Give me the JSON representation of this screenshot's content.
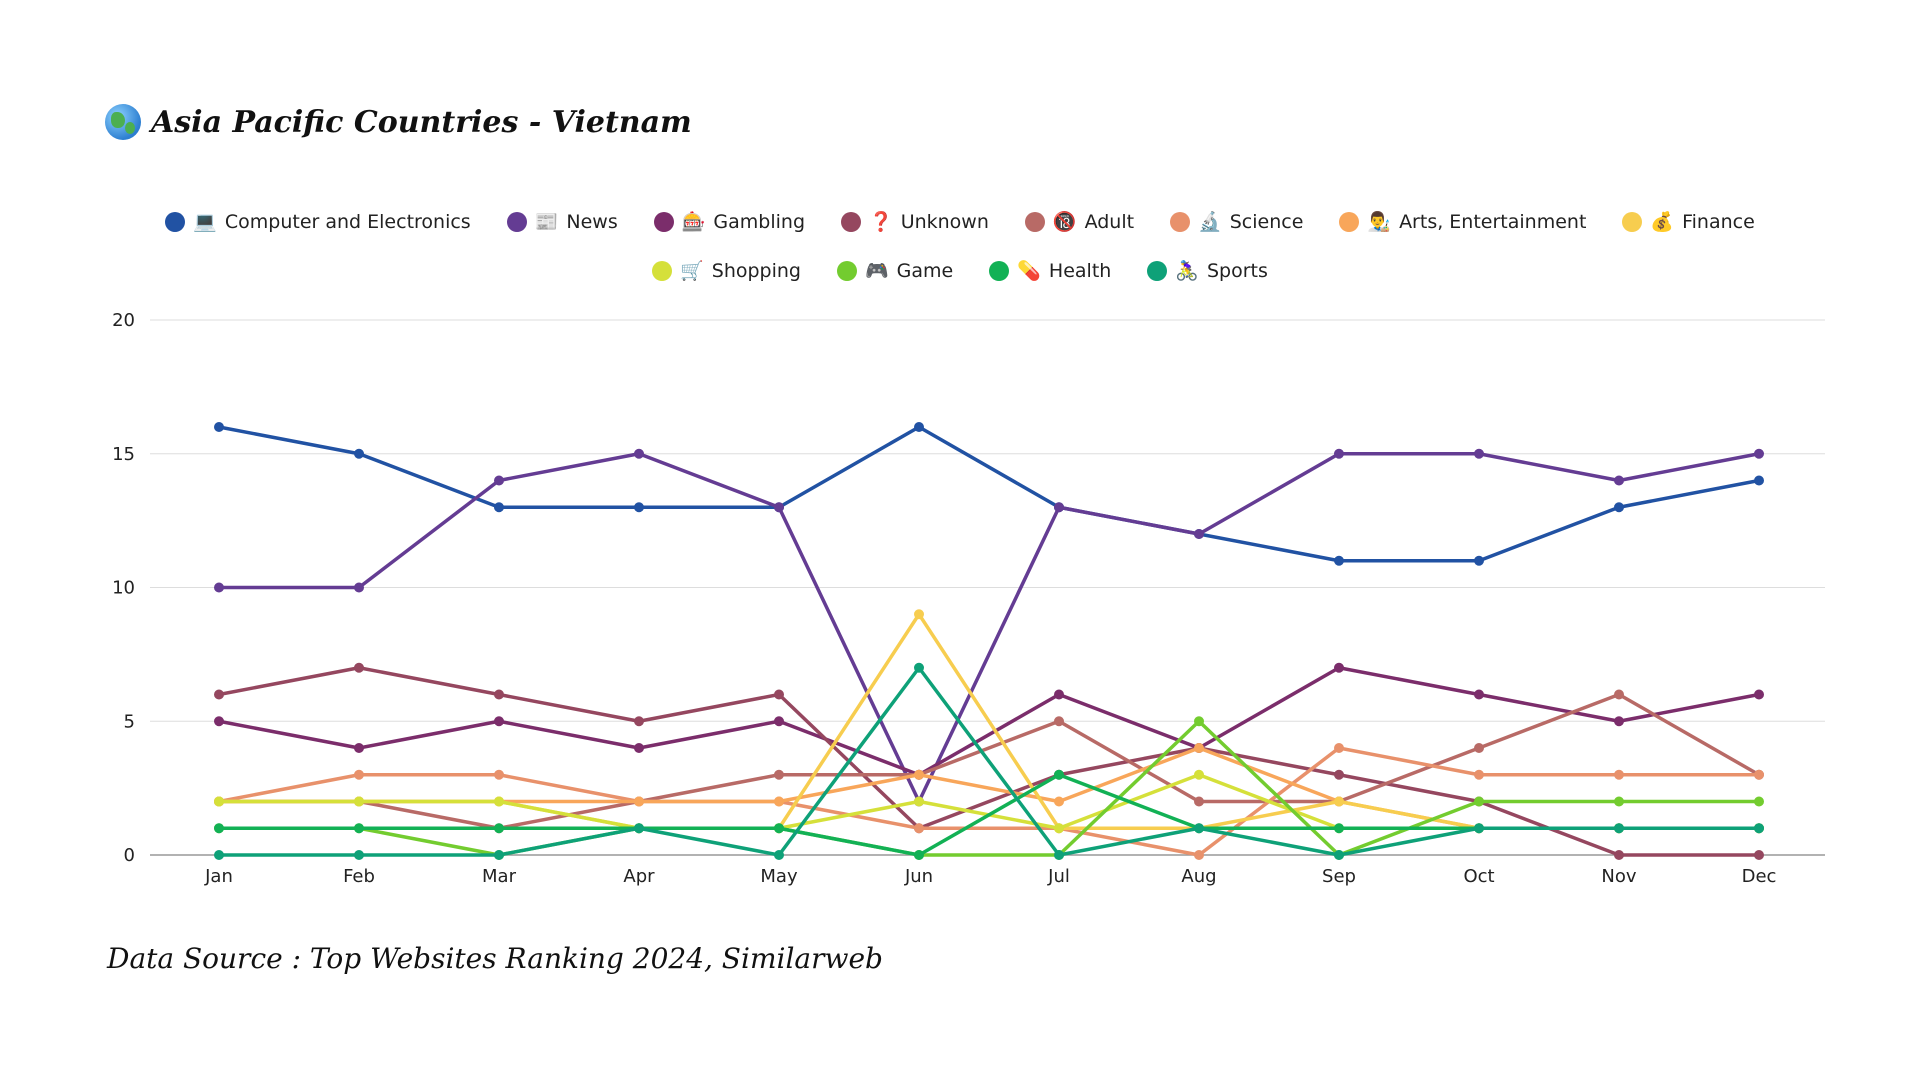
{
  "page": {
    "title_text": "Asia Pacific Countries - Vietnam",
    "title_icon": "globe-asia-icon",
    "source_text": "Data Source : Top Websites Ranking 2024, Similarweb"
  },
  "chart_data": {
    "type": "line",
    "title": "Asia Pacific Countries - Vietnam",
    "xlabel": "",
    "ylabel": "",
    "ylim": [
      0,
      20
    ],
    "yticks": [
      0,
      5,
      10,
      15,
      20
    ],
    "grid": true,
    "legend_position": "top",
    "categories": [
      "Jan",
      "Feb",
      "Mar",
      "Apr",
      "May",
      "Jun",
      "Jul",
      "Aug",
      "Sep",
      "Oct",
      "Nov",
      "Dec"
    ],
    "series": [
      {
        "name": "Computer and Electronics",
        "icon": "💻",
        "color": "#2152a3",
        "values": [
          16,
          15,
          13,
          13,
          13,
          16,
          13,
          12,
          11,
          11,
          13,
          14
        ]
      },
      {
        "name": "News",
        "icon": "📰",
        "color": "#643c93",
        "values": [
          10,
          10,
          14,
          15,
          13,
          2,
          13,
          12,
          15,
          15,
          14,
          15
        ]
      },
      {
        "name": "Gambling",
        "icon": "🎰",
        "color": "#7b2d6b",
        "values": [
          5,
          4,
          5,
          4,
          5,
          3,
          6,
          4,
          7,
          6,
          5,
          6
        ]
      },
      {
        "name": "Unknown",
        "icon": "❓",
        "color": "#95475f",
        "values": [
          6,
          7,
          6,
          5,
          6,
          1,
          3,
          4,
          3,
          2,
          0,
          0
        ]
      },
      {
        "name": "Adult",
        "icon": "🔞",
        "color": "#b86a66",
        "values": [
          2,
          2,
          1,
          2,
          3,
          3,
          5,
          2,
          2,
          4,
          6,
          3
        ]
      },
      {
        "name": "Science",
        "icon": "🔬",
        "color": "#e8916b",
        "values": [
          2,
          3,
          3,
          2,
          2,
          1,
          1,
          0,
          4,
          3,
          3,
          3
        ]
      },
      {
        "name": "Arts, Entertainment",
        "icon": "👨‍🎨",
        "color": "#f8a65a",
        "values": [
          2,
          2,
          2,
          2,
          2,
          3,
          2,
          4,
          2,
          1,
          1,
          1
        ]
      },
      {
        "name": "Finance",
        "icon": "💰",
        "color": "#f7cd4f",
        "values": [
          2,
          2,
          2,
          1,
          1,
          9,
          1,
          1,
          2,
          1,
          1,
          1
        ]
      },
      {
        "name": "Shopping",
        "icon": "🛒",
        "color": "#d5e03a",
        "values": [
          2,
          2,
          2,
          1,
          1,
          2,
          1,
          3,
          1,
          1,
          1,
          1
        ]
      },
      {
        "name": "Game",
        "icon": "🎮",
        "color": "#73cc2f",
        "values": [
          1,
          1,
          0,
          1,
          1,
          0,
          0,
          5,
          0,
          2,
          2,
          2
        ]
      },
      {
        "name": "Health",
        "icon": "💊",
        "color": "#12b155",
        "values": [
          1,
          1,
          1,
          1,
          1,
          0,
          3,
          1,
          1,
          1,
          1,
          1
        ]
      },
      {
        "name": "Sports",
        "icon": "🚴‍♀️",
        "color": "#0ea178",
        "values": [
          0,
          0,
          0,
          1,
          0,
          7,
          0,
          1,
          0,
          1,
          1,
          1
        ]
      }
    ]
  }
}
